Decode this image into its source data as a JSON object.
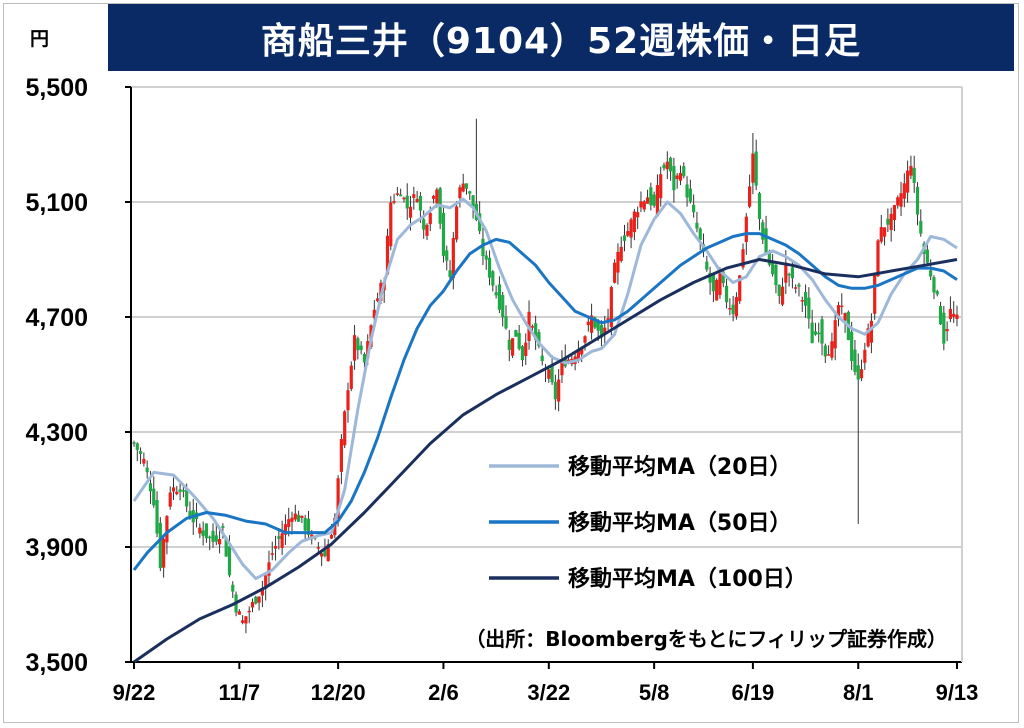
{
  "title": "商船三井（9104）52週株価・日足",
  "unit": "円",
  "source": "（出所：Bloombergをもとにフィリップ証券作成）",
  "chart_data": {
    "type": "candlestick",
    "ylim": [
      3500,
      5500
    ],
    "yticks": [
      3500,
      3900,
      4300,
      4700,
      5100,
      5500
    ],
    "ytick_labels": [
      "3,500",
      "3,900",
      "4,300",
      "4,700",
      "5,100",
      "5,500"
    ],
    "xtick_labels": [
      "9/22",
      "11/7",
      "12/20",
      "2/6",
      "3/22",
      "5/8",
      "6/19",
      "8/1",
      "9/13"
    ],
    "xtick_index": [
      0,
      32,
      62,
      94,
      126,
      158,
      188,
      220,
      250
    ],
    "up_color": "#e8221b",
    "down_color": "#21a846",
    "grid": true,
    "legend_position": "lower-right",
    "close_anchors": [
      [
        0,
        4260
      ],
      [
        3,
        4200
      ],
      [
        6,
        4060
      ],
      [
        8,
        3840
      ],
      [
        11,
        4100
      ],
      [
        14,
        4110
      ],
      [
        17,
        4010
      ],
      [
        21,
        3950
      ],
      [
        24,
        3920
      ],
      [
        27,
        3960
      ],
      [
        29,
        3800
      ],
      [
        31,
        3690
      ],
      [
        33,
        3640
      ],
      [
        36,
        3700
      ],
      [
        39,
        3760
      ],
      [
        42,
        3880
      ],
      [
        45,
        3950
      ],
      [
        48,
        4020
      ],
      [
        51,
        3990
      ],
      [
        54,
        3930
      ],
      [
        58,
        3870
      ],
      [
        61,
        4000
      ],
      [
        63,
        4260
      ],
      [
        65,
        4460
      ],
      [
        67,
        4620
      ],
      [
        70,
        4540
      ],
      [
        73,
        4730
      ],
      [
        76,
        4840
      ],
      [
        78,
        5100
      ],
      [
        81,
        5140
      ],
      [
        83,
        5080
      ],
      [
        86,
        5130
      ],
      [
        88,
        5000
      ],
      [
        90,
        5080
      ],
      [
        92,
        5160
      ],
      [
        94,
        4920
      ],
      [
        96,
        4840
      ],
      [
        98,
        5100
      ],
      [
        100,
        5180
      ],
      [
        102,
        5120
      ],
      [
        104,
        5040
      ],
      [
        106,
        4920
      ],
      [
        108,
        4850
      ],
      [
        110,
        4780
      ],
      [
        112,
        4710
      ],
      [
        114,
        4600
      ],
      [
        116,
        4640
      ],
      [
        118,
        4560
      ],
      [
        120,
        4700
      ],
      [
        122,
        4620
      ],
      [
        124,
        4540
      ],
      [
        126,
        4500
      ],
      [
        128,
        4420
      ],
      [
        130,
        4540
      ],
      [
        133,
        4560
      ],
      [
        136,
        4610
      ],
      [
        139,
        4700
      ],
      [
        142,
        4620
      ],
      [
        144,
        4700
      ],
      [
        146,
        4870
      ],
      [
        148,
        4960
      ],
      [
        150,
        5000
      ],
      [
        152,
        5060
      ],
      [
        154,
        5100
      ],
      [
        156,
        5120
      ],
      [
        158,
        5080
      ],
      [
        160,
        5200
      ],
      [
        162,
        5240
      ],
      [
        164,
        5150
      ],
      [
        166,
        5220
      ],
      [
        168,
        5130
      ],
      [
        170,
        5050
      ],
      [
        172,
        4960
      ],
      [
        174,
        4860
      ],
      [
        176,
        4780
      ],
      [
        178,
        4840
      ],
      [
        180,
        4760
      ],
      [
        182,
        4720
      ],
      [
        184,
        4840
      ],
      [
        186,
        5050
      ],
      [
        188,
        5260
      ],
      [
        190,
        5040
      ],
      [
        192,
        4920
      ],
      [
        194,
        4850
      ],
      [
        196,
        4760
      ],
      [
        198,
        4880
      ],
      [
        200,
        4820
      ],
      [
        202,
        4790
      ],
      [
        204,
        4740
      ],
      [
        206,
        4620
      ],
      [
        208,
        4660
      ],
      [
        210,
        4580
      ],
      [
        212,
        4600
      ],
      [
        214,
        4740
      ],
      [
        216,
        4700
      ],
      [
        218,
        4560
      ],
      [
        220,
        4470
      ],
      [
        222,
        4600
      ],
      [
        224,
        4690
      ],
      [
        226,
        4980
      ],
      [
        228,
        5020
      ],
      [
        230,
        5040
      ],
      [
        232,
        5100
      ],
      [
        234,
        5160
      ],
      [
        236,
        5240
      ],
      [
        238,
        5060
      ],
      [
        240,
        4920
      ],
      [
        242,
        4850
      ],
      [
        244,
        4760
      ],
      [
        246,
        4620
      ],
      [
        248,
        4720
      ],
      [
        250,
        4690
      ]
    ],
    "series": [
      {
        "name": "移動平均MA（20日）",
        "color": "#9db8d9",
        "width": 3,
        "points": [
          [
            0,
            4060
          ],
          [
            6,
            4160
          ],
          [
            12,
            4150
          ],
          [
            18,
            4080
          ],
          [
            24,
            4000
          ],
          [
            28,
            3930
          ],
          [
            33,
            3840
          ],
          [
            37,
            3790
          ],
          [
            42,
            3820
          ],
          [
            47,
            3880
          ],
          [
            51,
            3920
          ],
          [
            56,
            3940
          ],
          [
            60,
            3950
          ],
          [
            64,
            4100
          ],
          [
            68,
            4380
          ],
          [
            72,
            4620
          ],
          [
            76,
            4820
          ],
          [
            80,
            4970
          ],
          [
            84,
            5020
          ],
          [
            88,
            5050
          ],
          [
            92,
            5090
          ],
          [
            96,
            5080
          ],
          [
            100,
            5110
          ],
          [
            103,
            5080
          ],
          [
            107,
            5000
          ],
          [
            111,
            4870
          ],
          [
            115,
            4760
          ],
          [
            119,
            4680
          ],
          [
            123,
            4610
          ],
          [
            127,
            4560
          ],
          [
            131,
            4540
          ],
          [
            135,
            4550
          ],
          [
            139,
            4580
          ],
          [
            142,
            4590
          ],
          [
            146,
            4640
          ],
          [
            150,
            4780
          ],
          [
            154,
            4950
          ],
          [
            158,
            5040
          ],
          [
            162,
            5100
          ],
          [
            166,
            5060
          ],
          [
            170,
            4990
          ],
          [
            174,
            4930
          ],
          [
            178,
            4860
          ],
          [
            182,
            4820
          ],
          [
            186,
            4840
          ],
          [
            190,
            4910
          ],
          [
            194,
            4930
          ],
          [
            198,
            4910
          ],
          [
            202,
            4880
          ],
          [
            206,
            4830
          ],
          [
            210,
            4760
          ],
          [
            214,
            4700
          ],
          [
            218,
            4660
          ],
          [
            222,
            4640
          ],
          [
            226,
            4680
          ],
          [
            230,
            4780
          ],
          [
            234,
            4850
          ],
          [
            238,
            4900
          ],
          [
            242,
            4980
          ],
          [
            246,
            4970
          ],
          [
            250,
            4940
          ]
        ]
      },
      {
        "name": "移動平均MA（50日）",
        "color": "#1a75c4",
        "width": 3,
        "points": [
          [
            0,
            3820
          ],
          [
            4,
            3880
          ],
          [
            10,
            3950
          ],
          [
            16,
            4000
          ],
          [
            22,
            4020
          ],
          [
            28,
            4010
          ],
          [
            34,
            3990
          ],
          [
            40,
            3980
          ],
          [
            46,
            3950
          ],
          [
            52,
            3950
          ],
          [
            58,
            3950
          ],
          [
            62,
            3990
          ],
          [
            66,
            4060
          ],
          [
            70,
            4160
          ],
          [
            74,
            4280
          ],
          [
            78,
            4420
          ],
          [
            82,
            4550
          ],
          [
            86,
            4660
          ],
          [
            90,
            4740
          ],
          [
            94,
            4790
          ],
          [
            98,
            4860
          ],
          [
            102,
            4920
          ],
          [
            106,
            4950
          ],
          [
            110,
            4970
          ],
          [
            114,
            4960
          ],
          [
            118,
            4920
          ],
          [
            122,
            4880
          ],
          [
            126,
            4820
          ],
          [
            130,
            4770
          ],
          [
            134,
            4720
          ],
          [
            138,
            4700
          ],
          [
            142,
            4680
          ],
          [
            146,
            4690
          ],
          [
            150,
            4720
          ],
          [
            154,
            4760
          ],
          [
            158,
            4800
          ],
          [
            162,
            4840
          ],
          [
            166,
            4880
          ],
          [
            170,
            4910
          ],
          [
            174,
            4940
          ],
          [
            178,
            4960
          ],
          [
            182,
            4980
          ],
          [
            186,
            4990
          ],
          [
            190,
            4990
          ],
          [
            194,
            4970
          ],
          [
            198,
            4950
          ],
          [
            202,
            4920
          ],
          [
            206,
            4880
          ],
          [
            210,
            4840
          ],
          [
            214,
            4810
          ],
          [
            218,
            4800
          ],
          [
            222,
            4800
          ],
          [
            226,
            4810
          ],
          [
            230,
            4830
          ],
          [
            234,
            4850
          ],
          [
            238,
            4870
          ],
          [
            242,
            4870
          ],
          [
            246,
            4860
          ],
          [
            250,
            4830
          ]
        ]
      },
      {
        "name": "移動平均MA（100日）",
        "color": "#1b2f5e",
        "width": 3,
        "points": [
          [
            0,
            3500
          ],
          [
            10,
            3580
          ],
          [
            20,
            3650
          ],
          [
            30,
            3700
          ],
          [
            40,
            3760
          ],
          [
            50,
            3830
          ],
          [
            60,
            3910
          ],
          [
            70,
            4020
          ],
          [
            80,
            4140
          ],
          [
            90,
            4260
          ],
          [
            100,
            4360
          ],
          [
            110,
            4430
          ],
          [
            120,
            4490
          ],
          [
            130,
            4550
          ],
          [
            140,
            4620
          ],
          [
            150,
            4690
          ],
          [
            160,
            4760
          ],
          [
            170,
            4820
          ],
          [
            180,
            4870
          ],
          [
            190,
            4900
          ],
          [
            200,
            4880
          ],
          [
            210,
            4850
          ],
          [
            220,
            4840
          ],
          [
            230,
            4860
          ],
          [
            240,
            4880
          ],
          [
            250,
            4900
          ]
        ]
      }
    ]
  }
}
